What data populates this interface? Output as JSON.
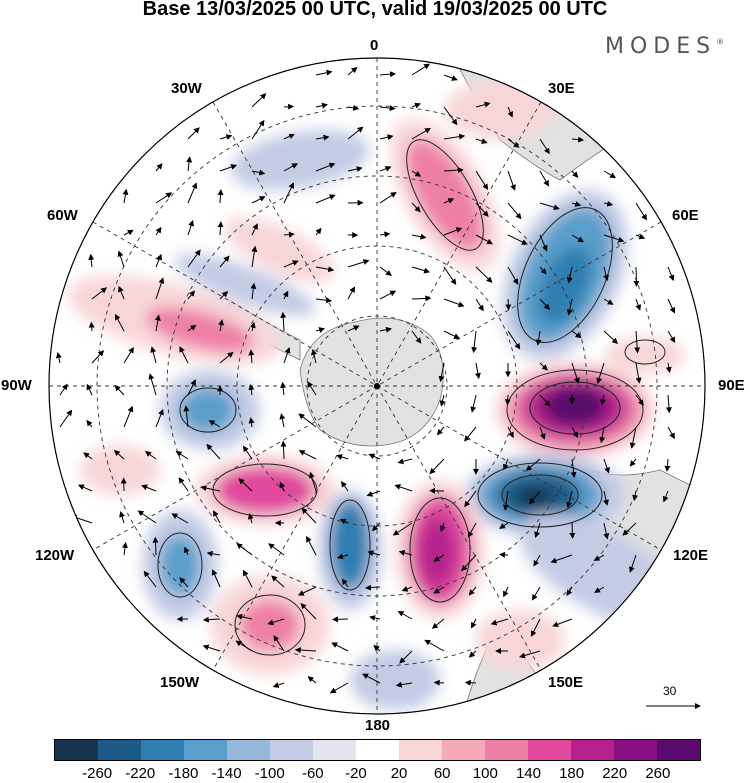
{
  "title": "Base 13/03/2025 00 UTC, valid 19/03/2025 00 UTC",
  "logo": {
    "text": "MODES",
    "mark": "®"
  },
  "map": {
    "projection": "south-polar-stereographic",
    "labels": {
      "top": "0",
      "bottom": "180",
      "left": "90W",
      "right": "90E",
      "nw1": "30W",
      "nw2": "60W",
      "ne1": "30E",
      "ne2": "60E",
      "sw1": "120W",
      "sw2": "150W",
      "se1": "120E",
      "se2": "150E"
    },
    "vector_scale_label": "30"
  },
  "colorbar": {
    "ticks": [
      "-260",
      "-220",
      "-180",
      "-140",
      "-100",
      "-60",
      "-20",
      "20",
      "60",
      "100",
      "140",
      "180",
      "220",
      "260"
    ],
    "colors": [
      "#17344f",
      "#1b5a86",
      "#2f7eb1",
      "#5a9fcb",
      "#96b9da",
      "#c3cbe5",
      "#e4e4f1",
      "#ffffff",
      "#f8d6d8",
      "#f4aab8",
      "#ee7fa7",
      "#e0489e",
      "#b5208e",
      "#8a0f83",
      "#5a0a6c"
    ]
  },
  "chart_data": {
    "type": "heatmap",
    "title": "Base 13/03/2025 00 UTC, valid 19/03/2025 00 UTC",
    "color_levels": [
      -260,
      -220,
      -180,
      -140,
      -100,
      -60,
      -20,
      20,
      60,
      100,
      140,
      180,
      220,
      260
    ],
    "anomaly_centres": [
      {
        "lon": "90E",
        "sign": "positive",
        "max": 260
      },
      {
        "lon": "110E",
        "sign": "negative",
        "min": -260
      },
      {
        "lon": "60E",
        "sign": "negative",
        "min": -220
      },
      {
        "lon": "20E",
        "sign": "positive",
        "max": 140
      },
      {
        "lon": "160E",
        "sign": "positive",
        "max": 220
      },
      {
        "lon": "170W",
        "sign": "negative",
        "min": -180
      },
      {
        "lon": "120W",
        "sign": "positive",
        "max": 180
      },
      {
        "lon": "90W",
        "sign": "negative",
        "min": -140
      },
      {
        "lon": "125W",
        "sign": "negative",
        "min": -140
      },
      {
        "lon": "150W",
        "sign": "positive",
        "max": 140
      },
      {
        "lon": "70W",
        "sign": "positive",
        "max": 140
      }
    ]
  }
}
